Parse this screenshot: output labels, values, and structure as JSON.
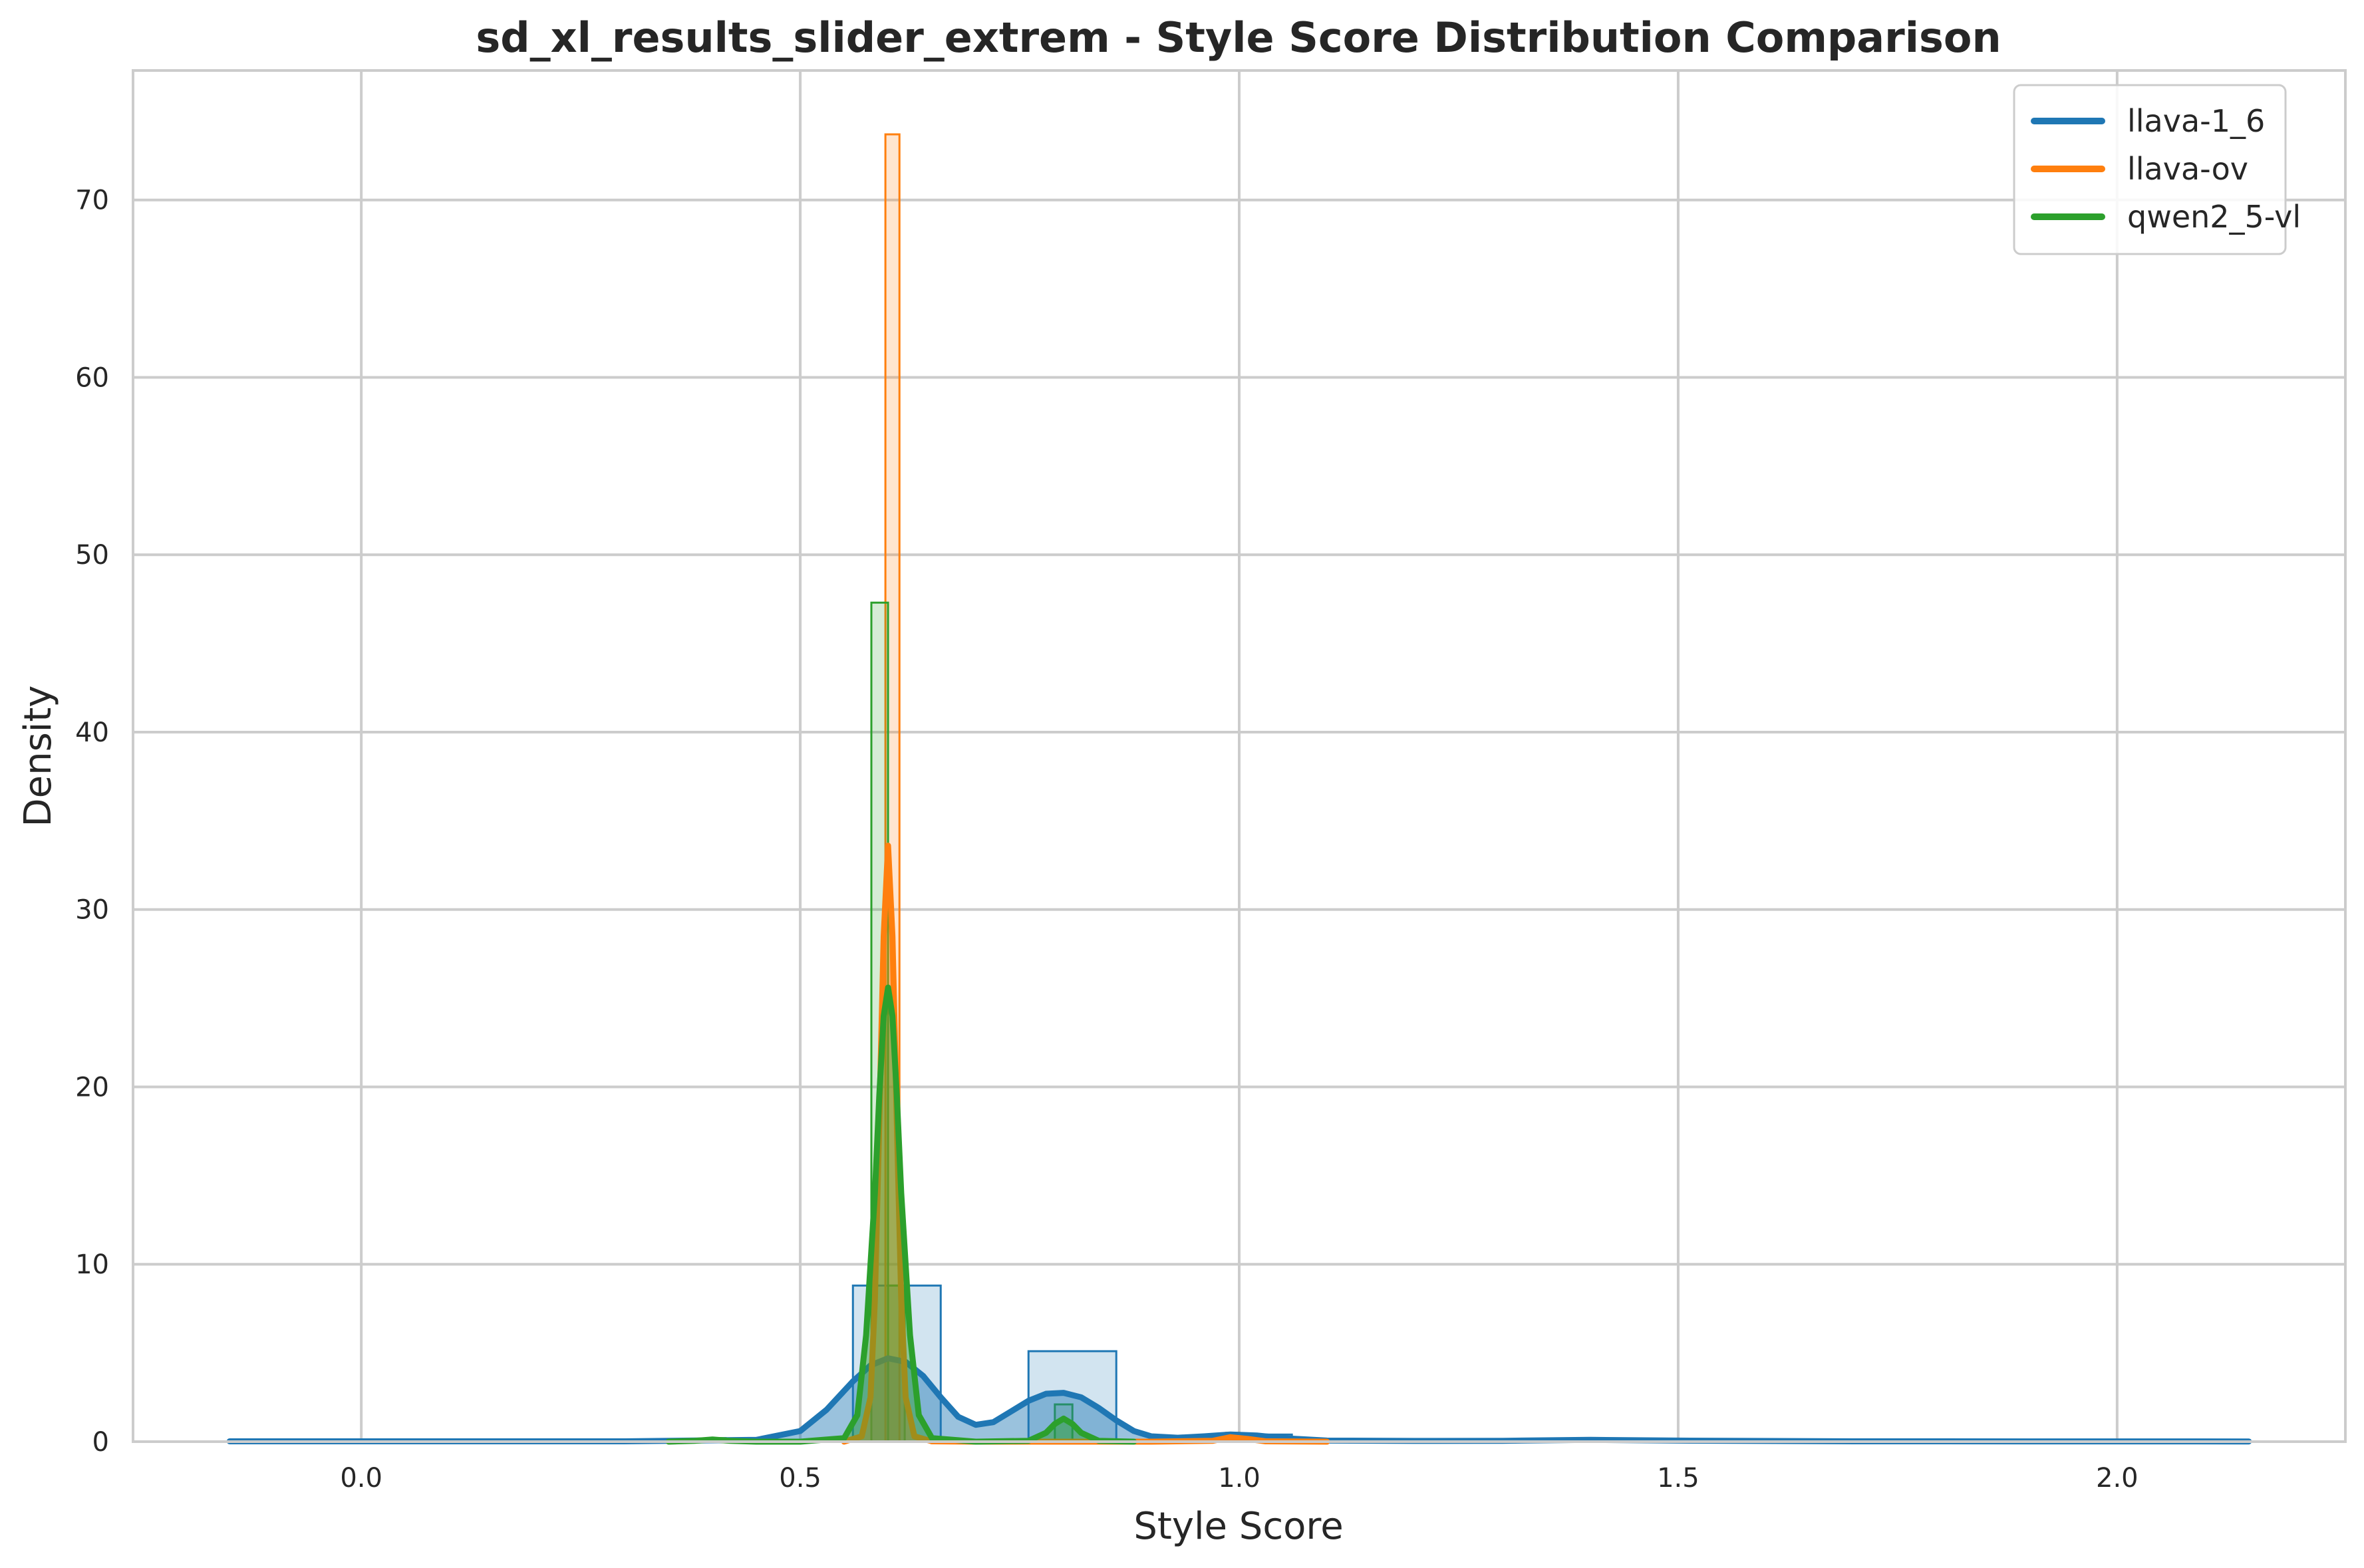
{
  "chart_data": {
    "type": "histogram",
    "title": "sd_xl_results_slider_extrem - Style Score Distribution Comparison",
    "xlabel": "Style Score",
    "ylabel": "Density",
    "xlim": [
      -0.26,
      2.26
    ],
    "ylim": [
      0,
      77.3
    ],
    "xticks": [
      0.0,
      0.5,
      1.0,
      1.5,
      2.0
    ],
    "xtick_labels": [
      "0.0",
      "0.5",
      "1.0",
      "1.5",
      "2.0"
    ],
    "yticks": [
      0,
      10,
      20,
      30,
      40,
      50,
      60,
      70
    ],
    "ytick_labels": [
      "0",
      "10",
      "20",
      "30",
      "40",
      "50",
      "60",
      "70"
    ],
    "grid": true,
    "legend_position": "upper right",
    "series": [
      {
        "name": "llava-1_6",
        "color": "#1f77b4",
        "histogram": [
          {
            "x0": 0.56,
            "x1": 0.66,
            "density": 8.8
          },
          {
            "x0": 0.76,
            "x1": 0.86,
            "density": 5.1
          },
          {
            "x0": 0.96,
            "x1": 1.06,
            "density": 0.4
          }
        ],
        "kde": {
          "x": [
            -0.15,
            0.3,
            0.45,
            0.5,
            0.53,
            0.56,
            0.58,
            0.6,
            0.62,
            0.64,
            0.66,
            0.68,
            0.7,
            0.72,
            0.74,
            0.76,
            0.78,
            0.8,
            0.82,
            0.84,
            0.86,
            0.88,
            0.9,
            0.93,
            0.96,
            0.99,
            1.02,
            1.05,
            1.1,
            1.2,
            1.3,
            1.4,
            1.5,
            1.7,
            2.15
          ],
          "y": [
            0.02,
            0.02,
            0.1,
            0.6,
            1.8,
            3.4,
            4.3,
            4.7,
            4.5,
            3.7,
            2.5,
            1.4,
            0.95,
            1.1,
            1.7,
            2.3,
            2.7,
            2.75,
            2.5,
            1.9,
            1.2,
            0.6,
            0.3,
            0.22,
            0.3,
            0.4,
            0.35,
            0.2,
            0.06,
            0.04,
            0.05,
            0.1,
            0.06,
            0.02,
            0.01
          ]
        }
      },
      {
        "name": "llava-ov",
        "color": "#ff7f0e",
        "histogram": [
          {
            "x0": 0.597,
            "x1": 0.613,
            "density": 73.7
          },
          {
            "x0": 0.985,
            "x1": 1.0,
            "density": 0.5
          }
        ],
        "kde": {
          "x": [
            0.55,
            0.57,
            0.58,
            0.585,
            0.59,
            0.595,
            0.6,
            0.605,
            0.61,
            0.615,
            0.62,
            0.63,
            0.65,
            0.7,
            0.9,
            0.97,
            0.99,
            1.01,
            1.03,
            1.1
          ],
          "y": [
            0,
            0.3,
            2.5,
            8.0,
            18.0,
            28.5,
            33.6,
            28.5,
            18.0,
            8.0,
            2.5,
            0.3,
            0.02,
            0,
            0,
            0.05,
            0.25,
            0.15,
            0.02,
            0
          ]
        }
      },
      {
        "name": "qwen2_5-vl",
        "color": "#2ca02c",
        "histogram": [
          {
            "x0": 0.395,
            "x1": 0.415,
            "density": 0.2
          },
          {
            "x0": 0.581,
            "x1": 0.6,
            "density": 47.3
          },
          {
            "x0": 0.6,
            "x1": 0.619,
            "density": 8.8
          },
          {
            "x0": 0.79,
            "x1": 0.81,
            "density": 2.1
          }
        ],
        "kde": {
          "x": [
            0.35,
            0.38,
            0.4,
            0.42,
            0.45,
            0.5,
            0.55,
            0.565,
            0.575,
            0.585,
            0.59,
            0.595,
            0.6,
            0.605,
            0.61,
            0.615,
            0.625,
            0.635,
            0.65,
            0.7,
            0.76,
            0.78,
            0.79,
            0.8,
            0.81,
            0.82,
            0.84,
            0.88
          ],
          "y": [
            0,
            0.05,
            0.12,
            0.05,
            0,
            0,
            0.2,
            1.5,
            6.0,
            14.0,
            19.5,
            24.0,
            25.6,
            24.0,
            19.5,
            14.0,
            6.0,
            1.5,
            0.2,
            0,
            0.05,
            0.5,
            1.0,
            1.3,
            1.0,
            0.5,
            0.05,
            0
          ]
        }
      }
    ]
  }
}
